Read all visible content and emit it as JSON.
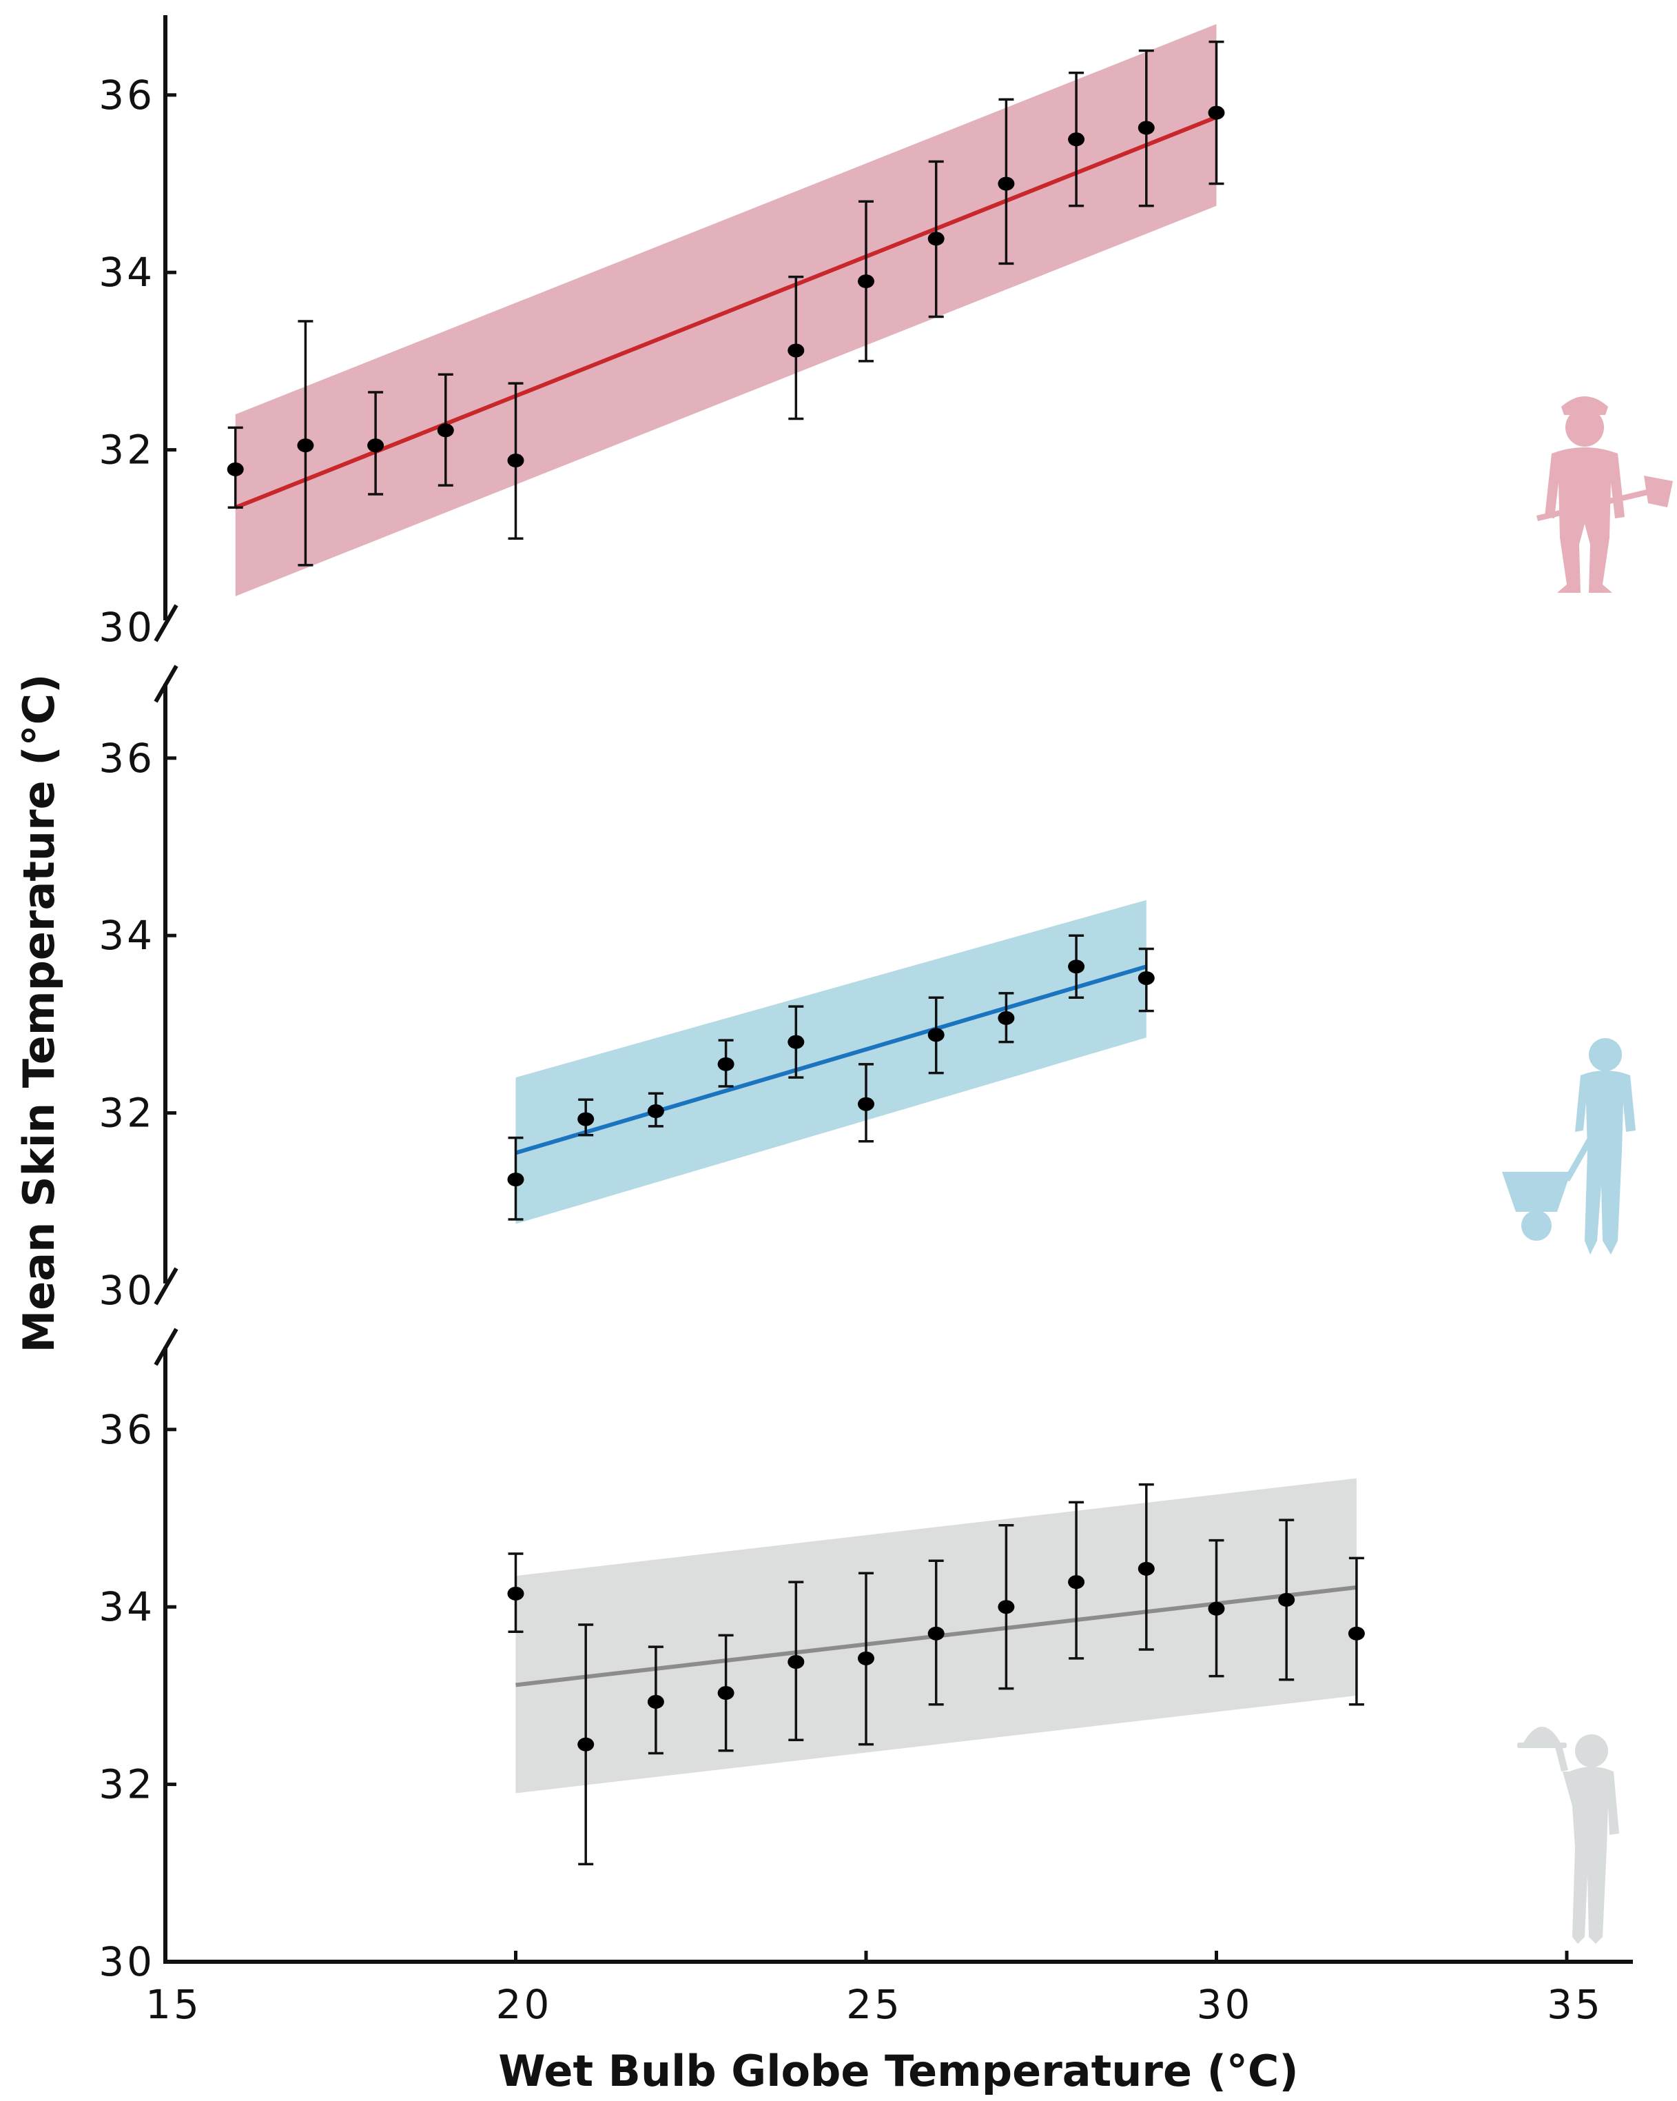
{
  "chart_data": {
    "type": "scatter",
    "xlabel": "Wet Bulb Globe Temperature (°C)",
    "ylabel": "Mean Skin Temperature (°C)",
    "xlim": [
      15,
      35
    ],
    "xticks": [
      15,
      20,
      25,
      30,
      35
    ],
    "ylim": [
      30,
      37
    ],
    "yticks": [
      30,
      32,
      34,
      36
    ],
    "panels": [
      {
        "name": "heavy-work",
        "line_color": "#c8282c",
        "band_color": "#e3b1bc",
        "icon_color": "#e5aeb9",
        "icon": "worker-with-shovel-icon",
        "fit_line": {
          "x": [
            16,
            30
          ],
          "y": [
            31.35,
            35.75
          ]
        },
        "band_upper": {
          "x": [
            16,
            30
          ],
          "y": [
            32.4,
            36.8
          ]
        },
        "band_lower": {
          "x": [
            16,
            30
          ],
          "y": [
            30.35,
            34.75
          ]
        },
        "points": [
          {
            "x": 16,
            "y": 31.78,
            "lo": 31.35,
            "hi": 32.25
          },
          {
            "x": 17,
            "y": 32.05,
            "lo": 30.7,
            "hi": 33.45
          },
          {
            "x": 18,
            "y": 32.05,
            "lo": 31.5,
            "hi": 32.65
          },
          {
            "x": 19,
            "y": 32.22,
            "lo": 31.6,
            "hi": 32.85
          },
          {
            "x": 20,
            "y": 31.88,
            "lo": 31.0,
            "hi": 32.75
          },
          {
            "x": 24,
            "y": 33.12,
            "lo": 32.35,
            "hi": 33.95
          },
          {
            "x": 25,
            "y": 33.9,
            "lo": 33.0,
            "hi": 34.8
          },
          {
            "x": 26,
            "y": 34.38,
            "lo": 33.5,
            "hi": 35.25
          },
          {
            "x": 27,
            "y": 35.0,
            "lo": 34.1,
            "hi": 35.95
          },
          {
            "x": 28,
            "y": 35.5,
            "lo": 34.75,
            "hi": 36.25
          },
          {
            "x": 29,
            "y": 35.63,
            "lo": 34.75,
            "hi": 36.5
          },
          {
            "x": 30,
            "y": 35.8,
            "lo": 35.0,
            "hi": 36.6
          }
        ]
      },
      {
        "name": "moderate-work",
        "line_color": "#1a74bf",
        "band_color": "#b3dae5",
        "icon_color": "#afd6e4",
        "icon": "worker-with-wheelbarrow-icon",
        "fit_line": {
          "x": [
            20,
            29
          ],
          "y": [
            31.55,
            33.65
          ]
        },
        "band_upper": {
          "x": [
            20,
            29
          ],
          "y": [
            32.4,
            34.4
          ]
        },
        "band_lower": {
          "x": [
            20,
            29
          ],
          "y": [
            30.75,
            32.85
          ]
        },
        "points": [
          {
            "x": 20,
            "y": 31.25,
            "lo": 30.8,
            "hi": 31.72
          },
          {
            "x": 21,
            "y": 31.93,
            "lo": 31.75,
            "hi": 32.15
          },
          {
            "x": 22,
            "y": 32.02,
            "lo": 31.85,
            "hi": 32.22
          },
          {
            "x": 23,
            "y": 32.55,
            "lo": 32.3,
            "hi": 32.82
          },
          {
            "x": 24,
            "y": 32.8,
            "lo": 32.4,
            "hi": 33.2
          },
          {
            "x": 25,
            "y": 32.1,
            "lo": 31.68,
            "hi": 32.55
          },
          {
            "x": 26,
            "y": 32.88,
            "lo": 32.45,
            "hi": 33.3
          },
          {
            "x": 27,
            "y": 33.07,
            "lo": 32.8,
            "hi": 33.35
          },
          {
            "x": 28,
            "y": 33.65,
            "lo": 33.3,
            "hi": 34.0
          },
          {
            "x": 29,
            "y": 33.52,
            "lo": 33.15,
            "hi": 33.85
          }
        ]
      },
      {
        "name": "light-work",
        "line_color": "#8c8c8c",
        "band_color": "#dcdddd",
        "icon_color": "#d9dcdc",
        "icon": "waiter-with-tray-icon",
        "fit_line": {
          "x": [
            20,
            32
          ],
          "y": [
            33.12,
            34.22
          ]
        },
        "band_upper": {
          "x": [
            20,
            32
          ],
          "y": [
            34.35,
            35.45
          ]
        },
        "band_lower": {
          "x": [
            20,
            32
          ],
          "y": [
            31.9,
            33.0
          ]
        },
        "points": [
          {
            "x": 20,
            "y": 34.15,
            "lo": 33.72,
            "hi": 34.6
          },
          {
            "x": 21,
            "y": 32.45,
            "lo": 31.1,
            "hi": 33.8
          },
          {
            "x": 22,
            "y": 32.93,
            "lo": 32.35,
            "hi": 33.55
          },
          {
            "x": 23,
            "y": 33.03,
            "lo": 32.38,
            "hi": 33.68
          },
          {
            "x": 24,
            "y": 33.38,
            "lo": 32.5,
            "hi": 34.28
          },
          {
            "x": 25,
            "y": 33.42,
            "lo": 32.45,
            "hi": 34.38
          },
          {
            "x": 26,
            "y": 33.7,
            "lo": 32.9,
            "hi": 34.52
          },
          {
            "x": 27,
            "y": 34.0,
            "lo": 33.08,
            "hi": 34.92
          },
          {
            "x": 28,
            "y": 34.28,
            "lo": 33.42,
            "hi": 35.18
          },
          {
            "x": 29,
            "y": 34.43,
            "lo": 33.52,
            "hi": 35.38
          },
          {
            "x": 30,
            "y": 33.98,
            "lo": 33.22,
            "hi": 34.75
          },
          {
            "x": 31,
            "y": 34.08,
            "lo": 33.18,
            "hi": 34.98
          },
          {
            "x": 32,
            "y": 33.7,
            "lo": 32.9,
            "hi": 34.55
          }
        ]
      }
    ]
  }
}
